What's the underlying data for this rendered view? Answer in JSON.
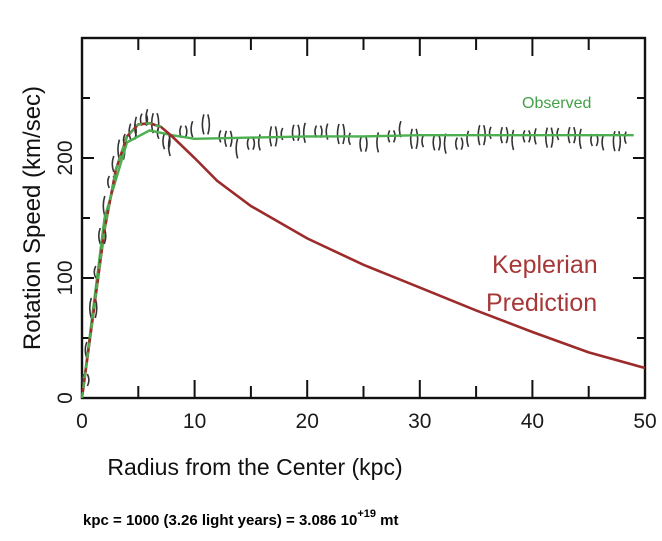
{
  "chart_data": {
    "type": "line",
    "title": "",
    "xlabel": "Radius from the Center (kpc)",
    "ylabel": "Rotation Speed (km/sec)",
    "xlim": [
      0,
      50
    ],
    "ylim": [
      0,
      300
    ],
    "x_ticks": [
      0,
      10,
      20,
      30,
      40,
      50
    ],
    "x_tick_labels": [
      "0",
      "10",
      "20",
      "30",
      "40",
      "50"
    ],
    "y_ticks": [
      0,
      100,
      200
    ],
    "y_tick_labels": [
      "0",
      "100",
      "200"
    ],
    "grid": false,
    "series": [
      {
        "name": "Observed",
        "color": "#4caf50",
        "kind": "scatter-with-fit",
        "points": [
          [
            0.3,
            15
          ],
          [
            0.6,
            40
          ],
          [
            1.0,
            75
          ],
          [
            1.4,
            105
          ],
          [
            1.8,
            135
          ],
          [
            2.2,
            160
          ],
          [
            2.6,
            180
          ],
          [
            3.0,
            195
          ],
          [
            3.5,
            207
          ],
          [
            4.0,
            215
          ],
          [
            4.5,
            222
          ],
          [
            5.0,
            226
          ],
          [
            5.5,
            232
          ],
          [
            6.0,
            234
          ],
          [
            6.5,
            229
          ],
          [
            7.0,
            221
          ],
          [
            7.5,
            214
          ],
          [
            8.0,
            210
          ],
          [
            9.0,
            222
          ],
          [
            10.0,
            224
          ],
          [
            11.0,
            228
          ],
          [
            12.5,
            218
          ],
          [
            13.0,
            216
          ],
          [
            14.0,
            208
          ],
          [
            15.0,
            212
          ],
          [
            16.0,
            213
          ],
          [
            17.0,
            218
          ],
          [
            18.0,
            220
          ],
          [
            19.0,
            221
          ],
          [
            20.0,
            221
          ],
          [
            21.0,
            222
          ],
          [
            22.0,
            222
          ],
          [
            23.0,
            220
          ],
          [
            24.0,
            216
          ],
          [
            25.0,
            212
          ],
          [
            26.5,
            213
          ],
          [
            27.5,
            218
          ],
          [
            28.5,
            224
          ],
          [
            29.5,
            216
          ],
          [
            30.5,
            214
          ],
          [
            31.5,
            213
          ],
          [
            32.5,
            212
          ],
          [
            33.5,
            212
          ],
          [
            34.5,
            216
          ],
          [
            35.5,
            219
          ],
          [
            36.5,
            221
          ],
          [
            37.5,
            219
          ],
          [
            38.5,
            215
          ],
          [
            39.5,
            218
          ],
          [
            40.5,
            218
          ],
          [
            41.5,
            217
          ],
          [
            42.5,
            220
          ],
          [
            43.5,
            219
          ],
          [
            44.5,
            216
          ],
          [
            45.5,
            215
          ],
          [
            46.5,
            213
          ],
          [
            47.5,
            214
          ],
          [
            48.5,
            217
          ]
        ],
        "fit": [
          [
            0,
            0
          ],
          [
            2,
            150
          ],
          [
            4,
            213
          ],
          [
            6,
            223
          ],
          [
            8,
            219
          ],
          [
            10,
            216
          ],
          [
            15,
            217
          ],
          [
            20,
            218
          ],
          [
            25,
            218
          ],
          [
            30,
            219
          ],
          [
            35,
            219
          ],
          [
            40,
            219
          ],
          [
            45,
            219
          ],
          [
            49,
            219
          ]
        ]
      },
      {
        "name": "Keplerian Prediction",
        "color": "#9c2b2b",
        "kind": "line",
        "points": [
          [
            0,
            0
          ],
          [
            1,
            70
          ],
          [
            2,
            140
          ],
          [
            3,
            190
          ],
          [
            4,
            218
          ],
          [
            5,
            228
          ],
          [
            6,
            229
          ],
          [
            7,
            226
          ],
          [
            8,
            218
          ],
          [
            10,
            200
          ],
          [
            12,
            181
          ],
          [
            15,
            160
          ],
          [
            20,
            133
          ],
          [
            25,
            111
          ],
          [
            30,
            92
          ],
          [
            35,
            73
          ],
          [
            40,
            55
          ],
          [
            45,
            38
          ],
          [
            50,
            25
          ]
        ]
      }
    ],
    "annotations": {
      "observed_label": "Observed",
      "keplerian_line1": "Keplerian",
      "keplerian_line2": "Prediction"
    }
  },
  "footnote": {
    "main": "kpc = 1000 (3.26 light years) = 3.086 10",
    "sup": "+19",
    "unit": " mt"
  },
  "colors": {
    "observed": "#4caf50",
    "observed_label": "#43a047",
    "keplerian": "#9c2b2b",
    "keplerian_label": "#a73838",
    "axes": "#111111"
  }
}
